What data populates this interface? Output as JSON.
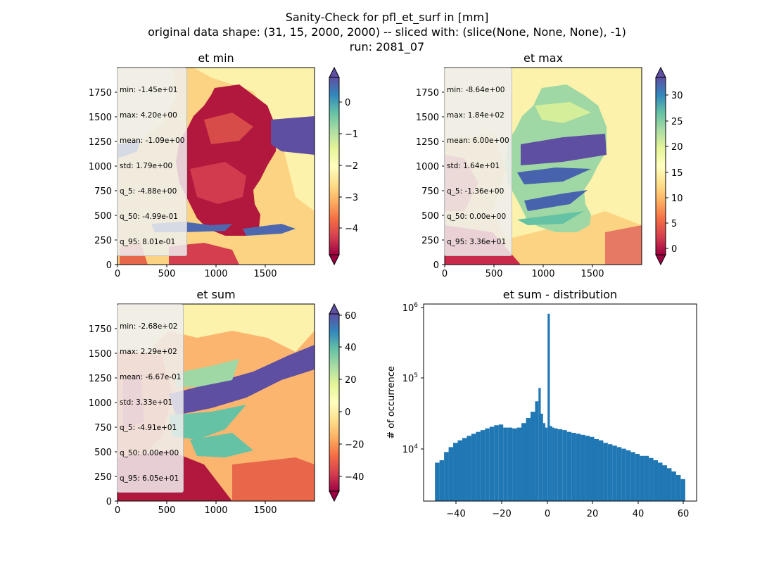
{
  "suptitle": {
    "line1": "Sanity-Check for pfl_et_surf in [mm]",
    "line2": "original data shape: (31, 15, 2000, 2000) -- sliced with: (slice(None, None, None), -1)",
    "line3": "run: 2081_07"
  },
  "chart_data": [
    {
      "type": "heatmap",
      "title": "et min",
      "xlim": [
        0,
        2000
      ],
      "ylim": [
        0,
        2000
      ],
      "xticks": [
        0,
        500,
        1000,
        1500
      ],
      "yticks": [
        0,
        250,
        500,
        750,
        1000,
        1250,
        1500,
        1750
      ],
      "colormap": "Spectral",
      "colorbar": {
        "range": [
          -5,
          1
        ],
        "ticks": [
          "0",
          "−1",
          "−2",
          "−3",
          "−4"
        ],
        "extend": "both"
      },
      "stats": [
        "min: -1.45e+01",
        "max: 4.20e+00",
        "mean: -1.09e+00",
        "std: 1.79e+00",
        "q_5: -4.88e+00",
        "q_50: -4.99e-01",
        "q_95: 8.01e-01"
      ]
    },
    {
      "type": "heatmap",
      "title": "et max",
      "xlim": [
        0,
        2000
      ],
      "ylim": [
        0,
        2000
      ],
      "xticks": [
        0,
        500,
        1000,
        1500
      ],
      "yticks": [
        0,
        250,
        500,
        750,
        1000,
        1250,
        1500,
        1750
      ],
      "colormap": "Spectral",
      "colorbar": {
        "range": [
          -2,
          34
        ],
        "ticks": [
          "30",
          "25",
          "20",
          "15",
          "10",
          "5",
          "0"
        ],
        "extend": "both"
      },
      "stats": [
        "min: -8.64e+00",
        "max: 1.84e+02",
        "mean: 6.00e+00",
        "std: 1.64e+01",
        "q_5: -1.36e+00",
        "q_50: 0.00e+00",
        "q_95: 3.36e+01"
      ]
    },
    {
      "type": "heatmap",
      "title": "et sum",
      "xlim": [
        0,
        2000
      ],
      "ylim": [
        0,
        2000
      ],
      "xticks": [
        0,
        500,
        1000,
        1500
      ],
      "yticks": [
        0,
        250,
        500,
        750,
        1000,
        1250,
        1500,
        1750
      ],
      "colormap": "Spectral",
      "colorbar": {
        "range": [
          -50,
          62
        ],
        "ticks": [
          "60",
          "40",
          "20",
          "0",
          "−20",
          "−40"
        ],
        "extend": "both"
      },
      "stats": [
        "min: -2.68e+02",
        "max: 2.29e+02",
        "mean: -6.67e-01",
        "std: 3.33e+01",
        "q_5: -4.91e+01",
        "q_50: 0.00e+00",
        "q_95: 6.05e+01"
      ]
    },
    {
      "type": "bar",
      "title": "et sum - distribution",
      "ylabel": "# of occurrence",
      "yscale": "log",
      "xlim": [
        -55,
        65
      ],
      "ylim": [
        1700,
        1100000
      ],
      "xticks": [
        "−40",
        "−20",
        "0",
        "20",
        "40",
        "60"
      ],
      "yticks": [
        {
          "base": "10",
          "exp": "4"
        },
        {
          "base": "10",
          "exp": "5"
        },
        {
          "base": "10",
          "exp": "6"
        }
      ],
      "bar_color": "#1f77b4",
      "x": [
        -49,
        -47,
        -45,
        -43,
        -41,
        -39,
        -37,
        -35,
        -33,
        -31,
        -29,
        -27,
        -25,
        -23,
        -21,
        -19,
        -17,
        -15,
        -13,
        -11,
        -9,
        -7,
        -5,
        -4,
        -3,
        -2,
        -1,
        0,
        1,
        2,
        3,
        5,
        7,
        9,
        11,
        13,
        15,
        17,
        19,
        21,
        23,
        25,
        27,
        29,
        31,
        33,
        35,
        37,
        39,
        41,
        43,
        45,
        47,
        49,
        51,
        53,
        55,
        57,
        59
      ],
      "values": [
        6000,
        6500,
        8500,
        10000,
        11500,
        12500,
        13500,
        14500,
        15500,
        16500,
        17500,
        18500,
        19500,
        20500,
        21000,
        19000,
        19000,
        18500,
        19000,
        22000,
        26000,
        32000,
        45000,
        70000,
        30000,
        22000,
        19000,
        800000,
        20000,
        19000,
        18500,
        18000,
        17500,
        16500,
        16000,
        15500,
        15000,
        14500,
        14000,
        13000,
        12500,
        11500,
        11000,
        10500,
        10000,
        9500,
        9000,
        8500,
        8000,
        7500,
        7500,
        7000,
        6500,
        6000,
        5500,
        5000,
        4500,
        4000,
        3500
      ]
    }
  ]
}
